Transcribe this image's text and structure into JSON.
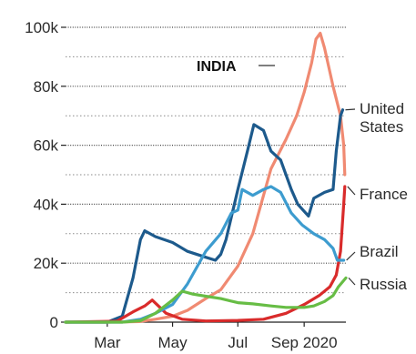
{
  "chart_data": {
    "type": "line",
    "title": "",
    "xlabel": "",
    "ylabel": "",
    "ylim": [
      0,
      100000
    ],
    "y_ticks": [
      {
        "value": 0,
        "label": "0"
      },
      {
        "value": 20000,
        "label": "20k"
      },
      {
        "value": 40000,
        "label": "40k"
      },
      {
        "value": 60000,
        "label": "60k"
      },
      {
        "value": 80000,
        "label": "80k"
      },
      {
        "value": 100000,
        "label": "100k"
      }
    ],
    "minor_gridlines": [
      10000,
      30000,
      50000,
      70000,
      90000
    ],
    "x_ticks": [
      {
        "value": "2020-03-01",
        "label": "Mar"
      },
      {
        "value": "2020-05-01",
        "label": "May"
      },
      {
        "value": "2020-07-01",
        "label": "Jul"
      },
      {
        "value": "2020-09-01",
        "label": "Sep 2020"
      }
    ],
    "xlim": [
      "2020-01-22",
      "2020-10-10"
    ],
    "grid": true,
    "series": [
      {
        "name": "INDIA",
        "color": "#f08a72",
        "points": [
          [
            "2020-01-22",
            0
          ],
          [
            "2020-03-01",
            0
          ],
          [
            "2020-03-31",
            200
          ],
          [
            "2020-04-15",
            1000
          ],
          [
            "2020-05-01",
            2000
          ],
          [
            "2020-05-15",
            4000
          ],
          [
            "2020-06-01",
            8000
          ],
          [
            "2020-06-15",
            11000
          ],
          [
            "2020-07-01",
            19000
          ],
          [
            "2020-07-15",
            30000
          ],
          [
            "2020-08-01",
            52000
          ],
          [
            "2020-08-15",
            62000
          ],
          [
            "2020-08-25",
            70000
          ],
          [
            "2020-09-01",
            78000
          ],
          [
            "2020-09-08",
            88000
          ],
          [
            "2020-09-12",
            96000
          ],
          [
            "2020-09-16",
            98000
          ],
          [
            "2020-09-20",
            93000
          ],
          [
            "2020-09-28",
            80000
          ],
          [
            "2020-10-05",
            70000
          ],
          [
            "2020-10-08",
            60000
          ],
          [
            "2020-10-09",
            50000
          ]
        ]
      },
      {
        "name": "United States",
        "color": "#1d5a8c",
        "points": [
          [
            "2020-01-22",
            0
          ],
          [
            "2020-03-01",
            0
          ],
          [
            "2020-03-15",
            2000
          ],
          [
            "2020-03-25",
            15000
          ],
          [
            "2020-04-01",
            28000
          ],
          [
            "2020-04-05",
            31000
          ],
          [
            "2020-04-15",
            29000
          ],
          [
            "2020-05-01",
            27000
          ],
          [
            "2020-05-15",
            24000
          ],
          [
            "2020-06-01",
            22000
          ],
          [
            "2020-06-10",
            21000
          ],
          [
            "2020-06-15",
            23000
          ],
          [
            "2020-06-20",
            28000
          ],
          [
            "2020-07-01",
            45000
          ],
          [
            "2020-07-10",
            58000
          ],
          [
            "2020-07-16",
            67000
          ],
          [
            "2020-07-25",
            65000
          ],
          [
            "2020-08-01",
            58000
          ],
          [
            "2020-08-10",
            55000
          ],
          [
            "2020-08-20",
            45000
          ],
          [
            "2020-08-26",
            40000
          ],
          [
            "2020-09-05",
            36000
          ],
          [
            "2020-09-10",
            42000
          ],
          [
            "2020-09-20",
            44000
          ],
          [
            "2020-09-28",
            45000
          ],
          [
            "2020-10-01",
            58000
          ],
          [
            "2020-10-05",
            70000
          ],
          [
            "2020-10-07",
            72000
          ]
        ]
      },
      {
        "name": "France",
        "color": "#d92b2b",
        "points": [
          [
            "2020-01-22",
            0
          ],
          [
            "2020-03-10",
            300
          ],
          [
            "2020-03-25",
            3500
          ],
          [
            "2020-04-05",
            5500
          ],
          [
            "2020-04-12",
            7500
          ],
          [
            "2020-04-25",
            3000
          ],
          [
            "2020-05-10",
            1000
          ],
          [
            "2020-06-01",
            400
          ],
          [
            "2020-07-01",
            600
          ],
          [
            "2020-07-25",
            1000
          ],
          [
            "2020-08-15",
            3000
          ],
          [
            "2020-09-01",
            6000
          ],
          [
            "2020-09-15",
            9000
          ],
          [
            "2020-09-25",
            12000
          ],
          [
            "2020-10-01",
            16000
          ],
          [
            "2020-10-05",
            24000
          ],
          [
            "2020-10-08",
            40000
          ],
          [
            "2020-10-09",
            46000
          ]
        ]
      },
      {
        "name": "Brazil",
        "color": "#3d9ccf",
        "points": [
          [
            "2020-01-22",
            0
          ],
          [
            "2020-03-15",
            0
          ],
          [
            "2020-04-01",
            1000
          ],
          [
            "2020-04-15",
            3000
          ],
          [
            "2020-05-01",
            6000
          ],
          [
            "2020-05-15",
            13000
          ],
          [
            "2020-06-01",
            24000
          ],
          [
            "2020-06-15",
            30000
          ],
          [
            "2020-06-25",
            37000
          ],
          [
            "2020-07-01",
            38000
          ],
          [
            "2020-07-05",
            45000
          ],
          [
            "2020-07-15",
            43000
          ],
          [
            "2020-07-25",
            45000
          ],
          [
            "2020-08-01",
            46000
          ],
          [
            "2020-08-10",
            44000
          ],
          [
            "2020-08-20",
            37000
          ],
          [
            "2020-08-30",
            33000
          ],
          [
            "2020-09-10",
            30000
          ],
          [
            "2020-09-20",
            28000
          ],
          [
            "2020-09-28",
            25000
          ],
          [
            "2020-10-02",
            21000
          ],
          [
            "2020-10-08",
            21000
          ]
        ]
      },
      {
        "name": "Russia",
        "color": "#67bd45",
        "points": [
          [
            "2020-01-22",
            0
          ],
          [
            "2020-03-15",
            0
          ],
          [
            "2020-04-01",
            500
          ],
          [
            "2020-04-15",
            3000
          ],
          [
            "2020-05-01",
            7500
          ],
          [
            "2020-05-10",
            10500
          ],
          [
            "2020-05-20",
            9500
          ],
          [
            "2020-06-01",
            8800
          ],
          [
            "2020-06-15",
            8000
          ],
          [
            "2020-07-01",
            6600
          ],
          [
            "2020-07-15",
            6200
          ],
          [
            "2020-08-01",
            5500
          ],
          [
            "2020-08-15",
            5000
          ],
          [
            "2020-09-01",
            5000
          ],
          [
            "2020-09-10",
            5500
          ],
          [
            "2020-09-20",
            7000
          ],
          [
            "2020-09-28",
            9000
          ],
          [
            "2020-10-03",
            12000
          ],
          [
            "2020-10-10",
            15000
          ]
        ]
      }
    ],
    "annotations": [
      {
        "series": "INDIA",
        "text": "INDIA"
      },
      {
        "series": "United States",
        "text": "United"
      },
      {
        "series": "United States",
        "text": "States"
      },
      {
        "series": "France",
        "text": "France"
      },
      {
        "series": "Brazil",
        "text": "Brazil"
      },
      {
        "series": "Russia",
        "text": "Russia"
      }
    ]
  }
}
